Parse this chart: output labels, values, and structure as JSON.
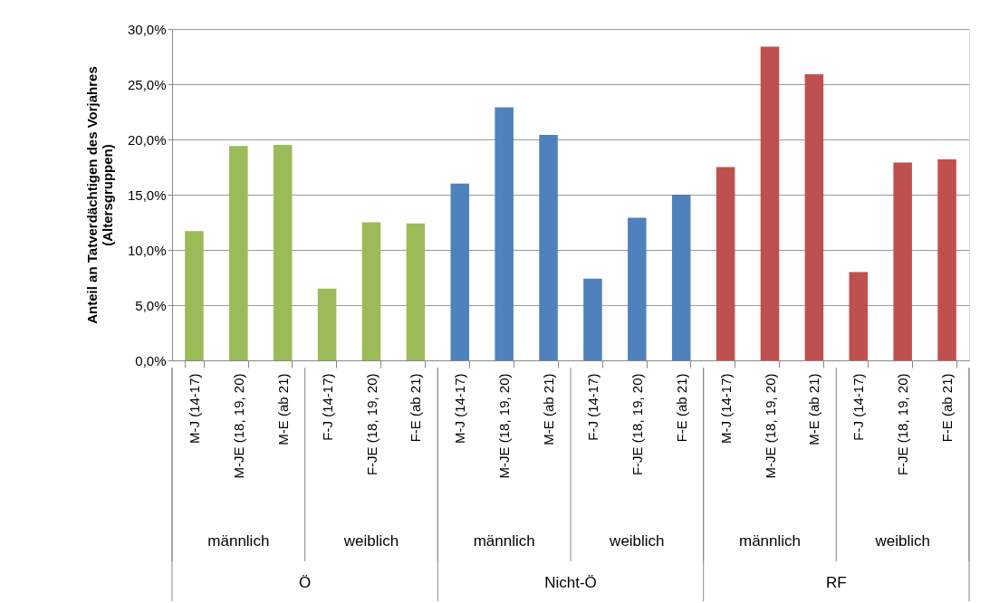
{
  "chart_data": {
    "type": "bar",
    "ylabel": "Anteil an Tatverdächtigen des Vorjahres\n(Altersgruppen)",
    "categories": [
      "M-J (14-17)",
      "M-JE (18, 19, 20)",
      "M-E (ab 21)",
      "F-J (14-17)",
      "F-JE (18, 19, 20)",
      "F-E (ab 21)",
      "M-J (14-17)",
      "M-JE (18, 19, 20)",
      "M-E (ab 21)",
      "F-J (14-17)",
      "F-JE (18, 19, 20)",
      "F-E (ab 21)",
      "M-J (14-17)",
      "M-JE (18, 19, 20)",
      "M-E (ab 21)",
      "F-J (14-17)",
      "F-JE (18, 19, 20)",
      "F-E (ab 21)"
    ],
    "values": [
      11.7,
      19.4,
      19.5,
      6.5,
      12.5,
      12.4,
      16.0,
      22.9,
      20.4,
      7.4,
      12.9,
      15.0,
      17.5,
      28.4,
      25.9,
      8.0,
      17.9,
      18.2
    ],
    "colors": [
      "#9bbb59",
      "#9bbb59",
      "#9bbb59",
      "#9bbb59",
      "#9bbb59",
      "#9bbb59",
      "#4f81bd",
      "#4f81bd",
      "#4f81bd",
      "#4f81bd",
      "#4f81bd",
      "#4f81bd",
      "#c0504d",
      "#c0504d",
      "#c0504d",
      "#c0504d",
      "#c0504d",
      "#c0504d"
    ],
    "annotations": [
      "männlich",
      "weiblich",
      "männlich",
      "weiblich",
      "männlich",
      "weiblich",
      "Ö",
      "Nicht-Ö",
      "RF"
    ],
    "ylim": [
      0,
      30
    ],
    "yticks": [
      {
        "value": 0,
        "label": "0,0%"
      },
      {
        "value": 5,
        "label": "5,0%"
      },
      {
        "value": 10,
        "label": "10,0%"
      },
      {
        "value": 15,
        "label": "15,0%"
      },
      {
        "value": 20,
        "label": "20,0%"
      },
      {
        "value": 25,
        "label": "25,0%"
      },
      {
        "value": 30,
        "label": "30,0%"
      }
    ],
    "grid": "y"
  }
}
